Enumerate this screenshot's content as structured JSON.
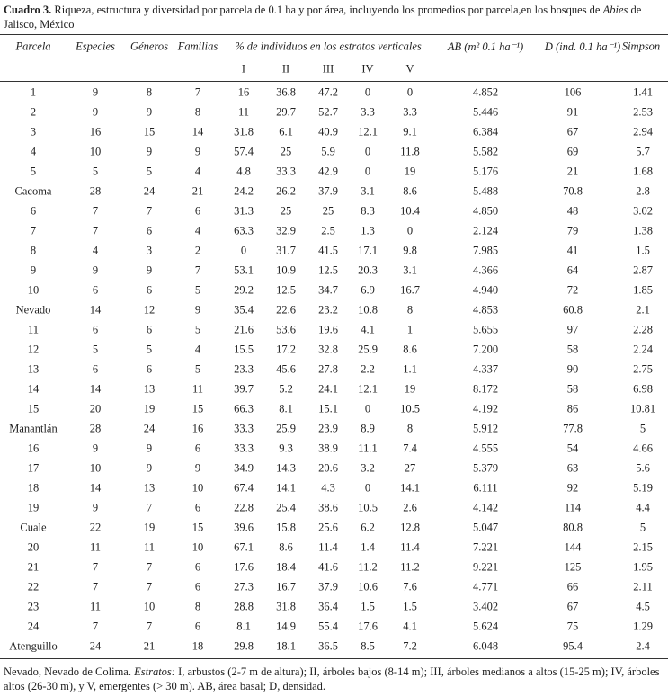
{
  "caption": {
    "label": "Cuadro 3.",
    "text": " Riqueza, estructura y diversidad por parcela de 0.1 ha y por área, incluyendo los promedios por parcela,en los bosques de ",
    "genus": "Abies",
    "end": " de Jalisco, México"
  },
  "table": {
    "header": [
      "Parcela",
      "Especies",
      "Géneros",
      "Familias",
      "% de individuos en los estratos verticales",
      "AB (m² 0.1 ha⁻¹)",
      "D (ind. 0.1 ha⁻¹)",
      "Simpson"
    ],
    "subheader": [
      "I",
      "II",
      "III",
      "IV",
      "V"
    ],
    "rows": [
      [
        "1",
        "9",
        "8",
        "7",
        "16",
        "36.8",
        "47.2",
        "0",
        "0",
        "4.852",
        "106",
        "1.41"
      ],
      [
        "2",
        "9",
        "9",
        "8",
        "11",
        "29.7",
        "52.7",
        "3.3",
        "3.3",
        "5.446",
        "91",
        "2.53"
      ],
      [
        "3",
        "16",
        "15",
        "14",
        "31.8",
        "6.1",
        "40.9",
        "12.1",
        "9.1",
        "6.384",
        "67",
        "2.94"
      ],
      [
        "4",
        "10",
        "9",
        "9",
        "57.4",
        "25",
        "5.9",
        "0",
        "11.8",
        "5.582",
        "69",
        "5.7"
      ],
      [
        "5",
        "5",
        "5",
        "4",
        "4.8",
        "33.3",
        "42.9",
        "0",
        "19",
        "5.176",
        "21",
        "1.68"
      ],
      [
        "Cacoma",
        "28",
        "24",
        "21",
        "24.2",
        "26.2",
        "37.9",
        "3.1",
        "8.6",
        "5.488",
        "70.8",
        "2.8"
      ],
      [
        "6",
        "7",
        "7",
        "6",
        "31.3",
        "25",
        "25",
        "8.3",
        "10.4",
        "4.850",
        "48",
        "3.02"
      ],
      [
        "7",
        "7",
        "6",
        "4",
        "63.3",
        "32.9",
        "2.5",
        "1.3",
        "0",
        "2.124",
        "79",
        "1.38"
      ],
      [
        "8",
        "4",
        "3",
        "2",
        "0",
        "31.7",
        "41.5",
        "17.1",
        "9.8",
        "7.985",
        "41",
        "1.5"
      ],
      [
        "9",
        "9",
        "9",
        "7",
        "53.1",
        "10.9",
        "12.5",
        "20.3",
        "3.1",
        "4.366",
        "64",
        "2.87"
      ],
      [
        "10",
        "6",
        "6",
        "5",
        "29.2",
        "12.5",
        "34.7",
        "6.9",
        "16.7",
        "4.940",
        "72",
        "1.85"
      ],
      [
        "Nevado",
        "14",
        "12",
        "9",
        "35.4",
        "22.6",
        "23.2",
        "10.8",
        "8",
        "4.853",
        "60.8",
        "2.1"
      ],
      [
        "11",
        "6",
        "6",
        "5",
        "21.6",
        "53.6",
        "19.6",
        "4.1",
        "1",
        "5.655",
        "97",
        "2.28"
      ],
      [
        "12",
        "5",
        "5",
        "4",
        "15.5",
        "17.2",
        "32.8",
        "25.9",
        "8.6",
        "7.200",
        "58",
        "2.24"
      ],
      [
        "13",
        "6",
        "6",
        "5",
        "23.3",
        "45.6",
        "27.8",
        "2.2",
        "1.1",
        "4.337",
        "90",
        "2.75"
      ],
      [
        "14",
        "14",
        "13",
        "11",
        "39.7",
        "5.2",
        "24.1",
        "12.1",
        "19",
        "8.172",
        "58",
        "6.98"
      ],
      [
        "15",
        "20",
        "19",
        "15",
        "66.3",
        "8.1",
        "15.1",
        "0",
        "10.5",
        "4.192",
        "86",
        "10.81"
      ],
      [
        "Manantlán",
        "28",
        "24",
        "16",
        "33.3",
        "25.9",
        "23.9",
        "8.9",
        "8",
        "5.912",
        "77.8",
        "5"
      ],
      [
        "16",
        "9",
        "9",
        "6",
        "33.3",
        "9.3",
        "38.9",
        "11.1",
        "7.4",
        "4.555",
        "54",
        "4.66"
      ],
      [
        "17",
        "10",
        "9",
        "9",
        "34.9",
        "14.3",
        "20.6",
        "3.2",
        "27",
        "5.379",
        "63",
        "5.6"
      ],
      [
        "18",
        "14",
        "13",
        "10",
        "67.4",
        "14.1",
        "4.3",
        "0",
        "14.1",
        "6.111",
        "92",
        "5.19"
      ],
      [
        "19",
        "9",
        "7",
        "6",
        "22.8",
        "25.4",
        "38.6",
        "10.5",
        "2.6",
        "4.142",
        "114",
        "4.4"
      ],
      [
        "Cuale",
        "22",
        "19",
        "15",
        "39.6",
        "15.8",
        "25.6",
        "6.2",
        "12.8",
        "5.047",
        "80.8",
        "5"
      ],
      [
        "20",
        "11",
        "11",
        "10",
        "67.1",
        "8.6",
        "11.4",
        "1.4",
        "11.4",
        "7.221",
        "144",
        "2.15"
      ],
      [
        "21",
        "7",
        "7",
        "6",
        "17.6",
        "18.4",
        "41.6",
        "11.2",
        "11.2",
        "9.221",
        "125",
        "1.95"
      ],
      [
        "22",
        "7",
        "7",
        "6",
        "27.3",
        "16.7",
        "37.9",
        "10.6",
        "7.6",
        "4.771",
        "66",
        "2.11"
      ],
      [
        "23",
        "11",
        "10",
        "8",
        "28.8",
        "31.8",
        "36.4",
        "1.5",
        "1.5",
        "3.402",
        "67",
        "4.5"
      ],
      [
        "24",
        "7",
        "7",
        "6",
        "8.1",
        "14.9",
        "55.4",
        "17.6",
        "4.1",
        "5.624",
        "75",
        "1.29"
      ],
      [
        "Atenguillo",
        "24",
        "21",
        "18",
        "29.8",
        "18.1",
        "36.5",
        "8.5",
        "7.2",
        "6.048",
        "95.4",
        "2.4"
      ]
    ]
  },
  "footnote": {
    "start": "Nevado, Nevado de Colima. ",
    "label": "Estratos:",
    "text": " I, arbustos (2-7 m de altura); II, árboles bajos (8-14 m); III, árboles  medianos a altos (15-25 m); IV, árboles altos (26-30 m), y V, emergentes (> 30 m). AB, área basal; D, densidad."
  }
}
